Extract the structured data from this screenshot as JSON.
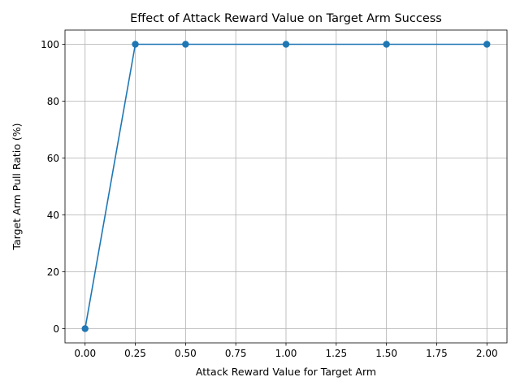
{
  "chart_data": {
    "type": "line",
    "title": "Effect of Attack Reward Value on Target Arm Success",
    "xlabel": "Attack Reward Value for Target Arm",
    "ylabel": "Target Arm Pull Ratio (%)",
    "x": [
      0.0,
      0.25,
      0.5,
      1.0,
      1.5,
      2.0
    ],
    "series": [
      {
        "values": [
          0,
          100,
          100,
          100,
          100,
          100
        ],
        "color": "#1f77b4",
        "marker": "circle"
      }
    ],
    "xlim": [
      -0.1,
      2.1
    ],
    "ylim": [
      -5,
      105
    ],
    "xticks": [
      0.0,
      0.25,
      0.5,
      0.75,
      1.0,
      1.25,
      1.5,
      1.75,
      2.0
    ],
    "xtick_labels": [
      "0.00",
      "0.25",
      "0.50",
      "0.75",
      "1.00",
      "1.25",
      "1.50",
      "1.75",
      "2.00"
    ],
    "yticks": [
      0,
      20,
      40,
      60,
      80,
      100
    ],
    "ytick_labels": [
      "0",
      "20",
      "40",
      "60",
      "80",
      "100"
    ],
    "grid": true,
    "legend": false
  }
}
